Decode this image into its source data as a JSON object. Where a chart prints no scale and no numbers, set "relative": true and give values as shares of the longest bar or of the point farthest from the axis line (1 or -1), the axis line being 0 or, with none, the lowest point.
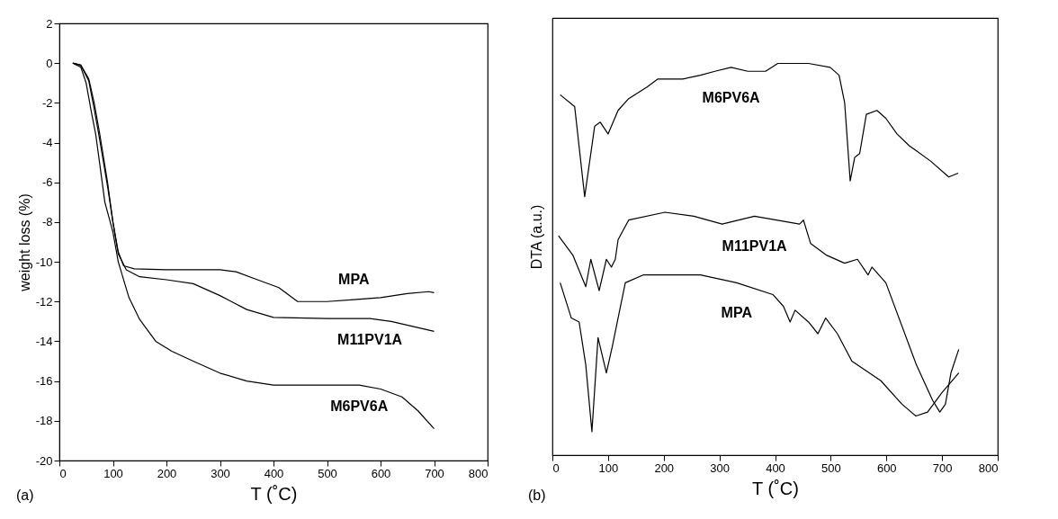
{
  "chart_data": [
    {
      "type": "line",
      "xlabel": "T (˚C)",
      "ylabel": "weight loss (%)",
      "annotations": [
        "(a)"
      ],
      "xlim": [
        0,
        800
      ],
      "ylim": [
        -20,
        2
      ],
      "xticks": [
        0,
        100,
        200,
        300,
        400,
        500,
        600,
        700,
        800
      ],
      "yticks": [
        -20,
        -18,
        -16,
        -14,
        -12,
        -10,
        -8,
        -6,
        -4,
        -2,
        0,
        2
      ],
      "series": [
        {
          "name": "MPA",
          "color": "#000000",
          "x": [
            25,
            40,
            55,
            65,
            75,
            90,
            100,
            110,
            120,
            140,
            200,
            300,
            330,
            370,
            410,
            445,
            500,
            550,
            600,
            650,
            690,
            700
          ],
          "values": [
            0,
            -0.1,
            -0.8,
            -2,
            -3.5,
            -6,
            -8,
            -9.5,
            -10.2,
            -10.35,
            -10.4,
            -10.4,
            -10.5,
            -10.9,
            -11.3,
            -12.0,
            -12.0,
            -11.9,
            -11.8,
            -11.6,
            -11.5,
            -11.55
          ]
        },
        {
          "name": "M11PV1A",
          "color": "#000000",
          "x": [
            25,
            40,
            55,
            65,
            75,
            90,
            100,
            110,
            125,
            150,
            200,
            250,
            300,
            350,
            400,
            500,
            580,
            620,
            660,
            700
          ],
          "values": [
            0,
            -0.1,
            -0.9,
            -2.3,
            -3.8,
            -6.2,
            -8,
            -9.6,
            -10.4,
            -10.75,
            -10.9,
            -11.1,
            -11.7,
            -12.4,
            -12.8,
            -12.85,
            -12.85,
            -13.0,
            -13.25,
            -13.5
          ]
        },
        {
          "name": "M6PV6A",
          "color": "#000000",
          "x": [
            25,
            40,
            50,
            60,
            68,
            75,
            85,
            100,
            110,
            130,
            150,
            180,
            210,
            250,
            300,
            350,
            400,
            500,
            560,
            600,
            640,
            670,
            700
          ],
          "values": [
            0,
            -0.2,
            -1,
            -2.5,
            -3.6,
            -5,
            -7,
            -8.5,
            -10,
            -11.8,
            -12.9,
            -14,
            -14.5,
            -15,
            -15.6,
            -16,
            -16.2,
            -16.2,
            -16.2,
            -16.4,
            -16.8,
            -17.5,
            -18.4
          ]
        }
      ]
    },
    {
      "type": "line",
      "xlabel": "T (˚C)",
      "ylabel": "DTA (a.u.)",
      "annotations": [
        "(b)"
      ],
      "relative": true,
      "xlim": [
        0,
        800
      ],
      "tick_labels": "x",
      "xticks": [
        0,
        100,
        200,
        300,
        400,
        500,
        600,
        700,
        800
      ],
      "series": [
        {
          "name": "M6PV6A",
          "color": "#000000",
          "x": [
            14,
            40,
            58,
            76,
            86,
            100,
            118,
            137,
            170,
            189,
            234,
            266,
            292,
            321,
            351,
            383,
            405,
            460,
            499,
            515,
            525,
            535,
            543,
            552,
            564,
            583,
            599,
            619,
            641,
            680,
            712,
            729
          ],
          "values": [
            0.92,
            0.89,
            0.66,
            0.84,
            0.85,
            0.82,
            0.88,
            0.91,
            0.94,
            0.96,
            0.96,
            0.97,
            0.98,
            0.99,
            0.98,
            0.98,
            1.0,
            1.0,
            0.99,
            0.97,
            0.9,
            0.7,
            0.76,
            0.77,
            0.87,
            0.88,
            0.86,
            0.82,
            0.79,
            0.75,
            0.71,
            0.72
          ]
        },
        {
          "name": "M11PV1A",
          "color": "#000000",
          "x": [
            11,
            37,
            60,
            69,
            84,
            97,
            106,
            113,
            118,
            137,
            202,
            254,
            305,
            363,
            444,
            451,
            464,
            493,
            525,
            548,
            567,
            574,
            599,
            654,
            683,
            696,
            706,
            716,
            730
          ],
          "values": [
            0.56,
            0.51,
            0.43,
            0.5,
            0.42,
            0.5,
            0.48,
            0.5,
            0.55,
            0.6,
            0.62,
            0.61,
            0.59,
            0.61,
            0.59,
            0.6,
            0.54,
            0.51,
            0.49,
            0.5,
            0.46,
            0.48,
            0.44,
            0.23,
            0.14,
            0.11,
            0.13,
            0.21,
            0.27
          ]
        },
        {
          "name": "MPA",
          "color": "#000000",
          "x": [
            14,
            34,
            48,
            60,
            71,
            82,
            97,
            108,
            118,
            131,
            163,
            202,
            266,
            331,
            396,
            415,
            427,
            436,
            460,
            477,
            491,
            512,
            538,
            590,
            628,
            653,
            674,
            700,
            730
          ],
          "values": [
            0.44,
            0.35,
            0.34,
            0.23,
            0.06,
            0.3,
            0.21,
            0.28,
            0.35,
            0.44,
            0.46,
            0.46,
            0.46,
            0.44,
            0.41,
            0.38,
            0.34,
            0.37,
            0.34,
            0.31,
            0.35,
            0.31,
            0.24,
            0.19,
            0.13,
            0.1,
            0.11,
            0.16,
            0.21
          ]
        }
      ]
    }
  ]
}
